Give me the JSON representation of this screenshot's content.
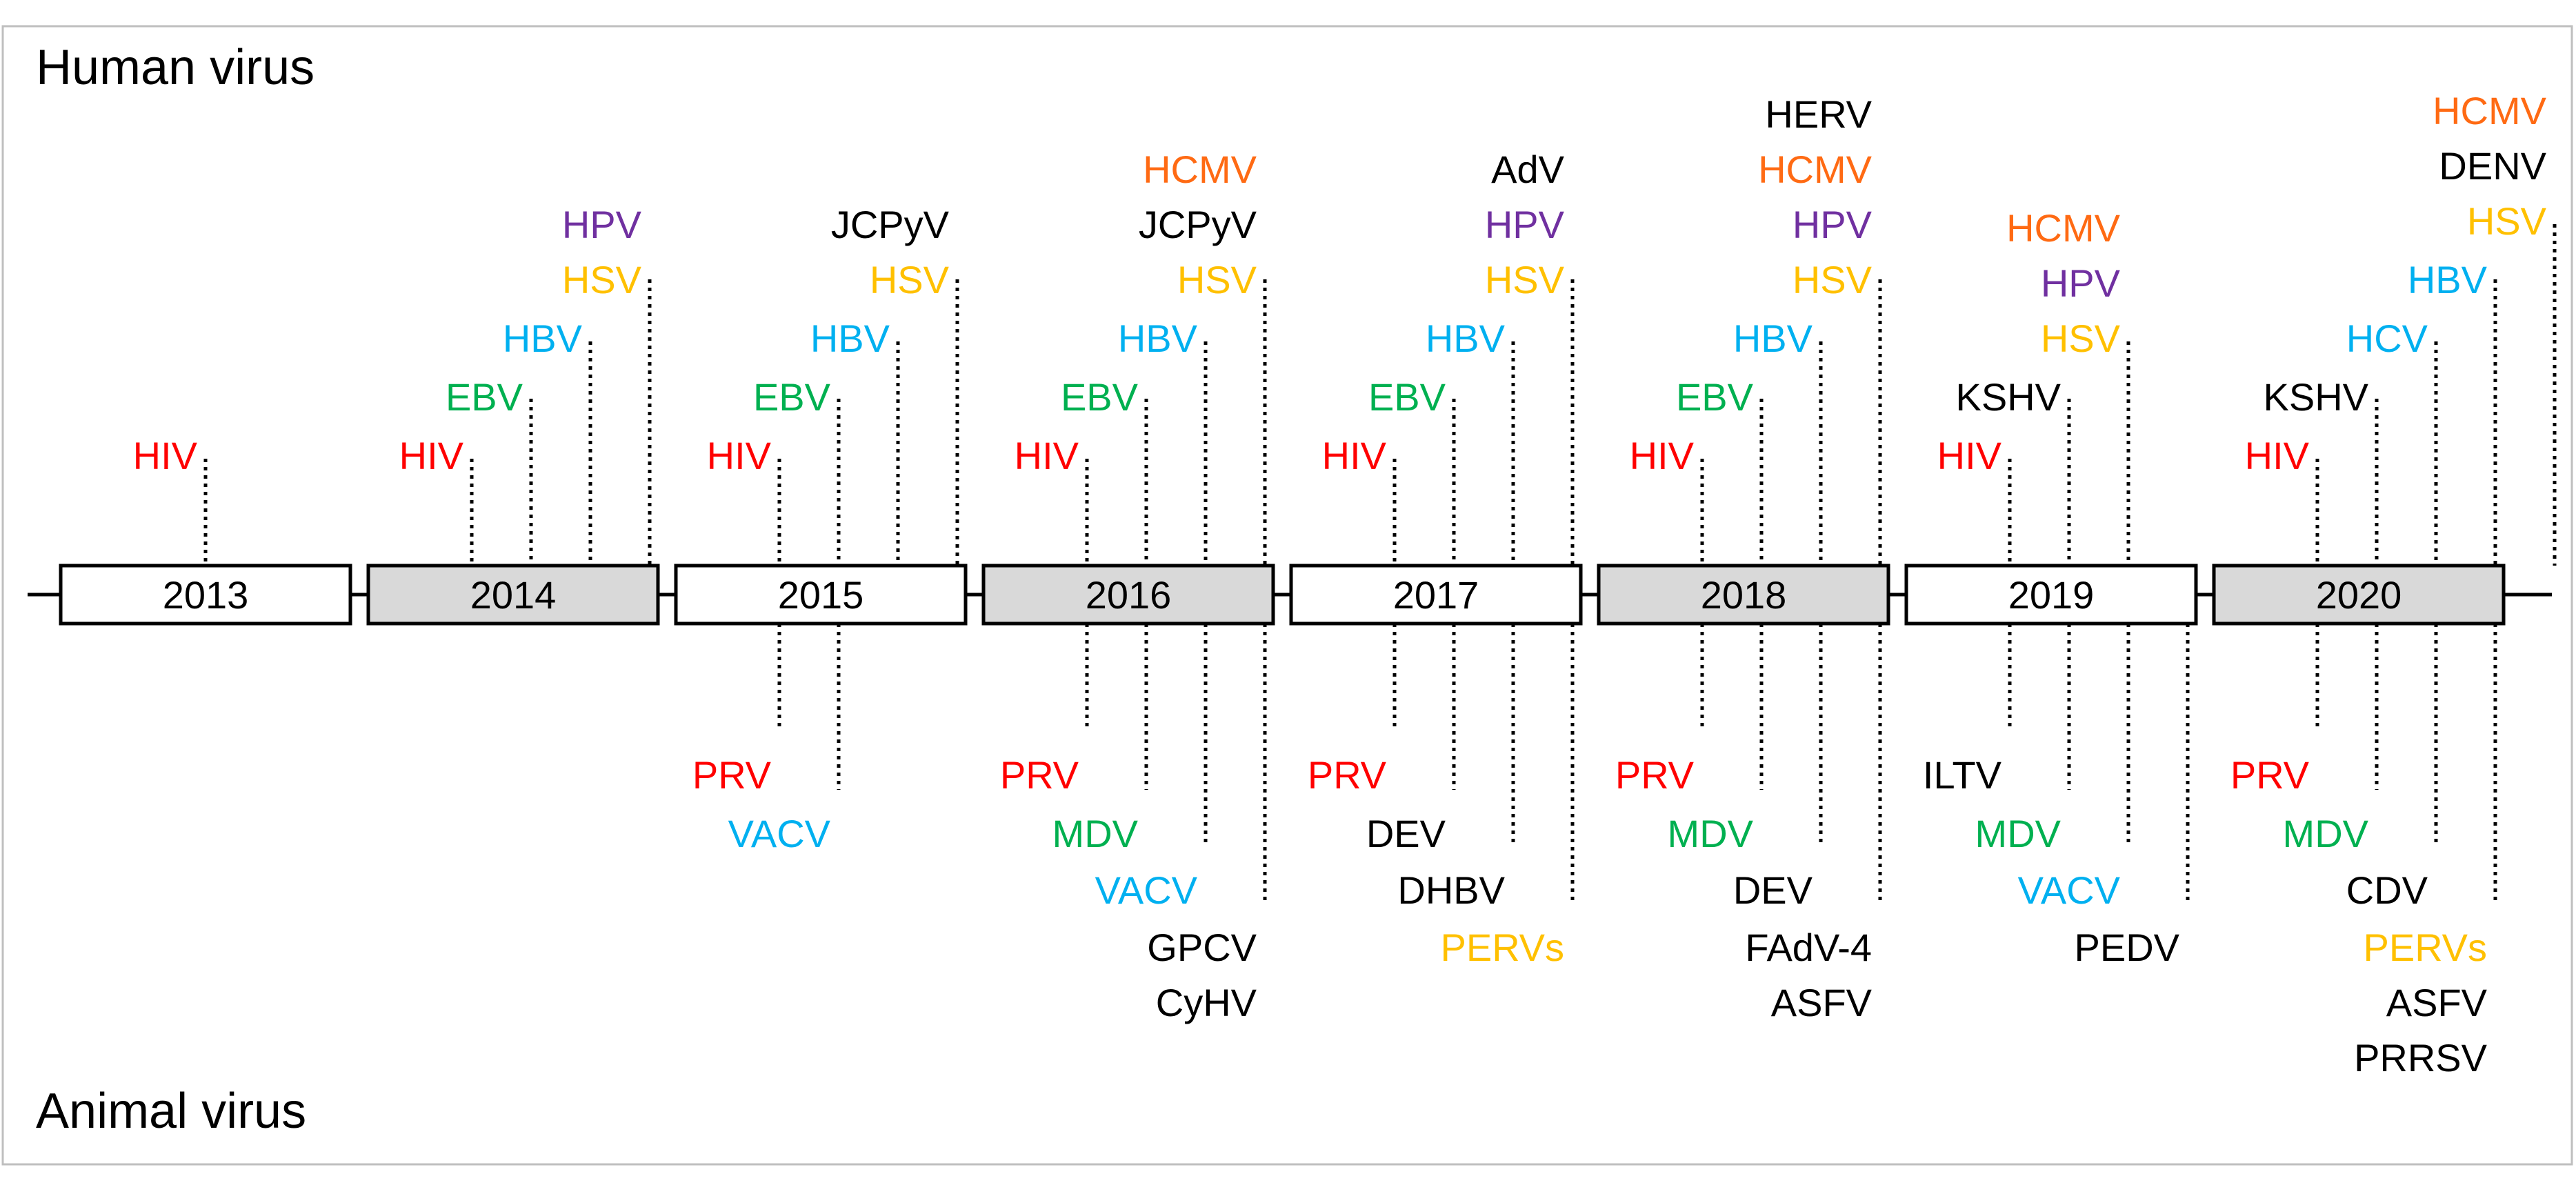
{
  "header_label": "Human virus",
  "footer_label": "Animal virus",
  "colors": {
    "red": "#ff0000",
    "green": "#00b050",
    "blue": "#00b0f0",
    "purple": "#7030a0",
    "yellow": "#ffc000",
    "orange": "#ff6a13",
    "black": "#000000",
    "box_white": "#ffffff",
    "box_gray": "#d9d9d9"
  },
  "years": [
    {
      "year": "2013",
      "shaded": false,
      "human": [
        {
          "viruses": [
            {
              "name": "HIV",
              "color": "red"
            }
          ]
        }
      ],
      "animal": []
    },
    {
      "year": "2014",
      "shaded": true,
      "human": [
        {
          "viruses": [
            {
              "name": "HIV",
              "color": "red"
            }
          ]
        },
        {
          "viruses": [
            {
              "name": "EBV",
              "color": "green"
            }
          ]
        },
        {
          "viruses": [
            {
              "name": "HBV",
              "color": "blue"
            }
          ]
        },
        {
          "viruses": [
            {
              "name": "HSV",
              "color": "yellow"
            },
            {
              "name": "HPV",
              "color": "purple"
            }
          ]
        }
      ],
      "animal": []
    },
    {
      "year": "2015",
      "shaded": false,
      "human": [
        {
          "viruses": [
            {
              "name": "HIV",
              "color": "red"
            }
          ]
        },
        {
          "viruses": [
            {
              "name": "EBV",
              "color": "green"
            }
          ]
        },
        {
          "viruses": [
            {
              "name": "HBV",
              "color": "blue"
            }
          ]
        },
        {
          "viruses": [
            {
              "name": "HSV",
              "color": "yellow"
            },
            {
              "name": "JCPyV",
              "color": "black"
            }
          ]
        }
      ],
      "animal": [
        {
          "viruses": [
            {
              "name": "PRV",
              "color": "red"
            }
          ]
        },
        {
          "viruses": [
            {
              "name": "VACV",
              "color": "blue"
            }
          ]
        }
      ]
    },
    {
      "year": "2016",
      "shaded": true,
      "human": [
        {
          "viruses": [
            {
              "name": "HIV",
              "color": "red"
            }
          ]
        },
        {
          "viruses": [
            {
              "name": "EBV",
              "color": "green"
            }
          ]
        },
        {
          "viruses": [
            {
              "name": "HBV",
              "color": "blue"
            }
          ]
        },
        {
          "viruses": [
            {
              "name": "HSV",
              "color": "yellow"
            },
            {
              "name": "JCPyV",
              "color": "black"
            },
            {
              "name": "HCMV",
              "color": "orange"
            }
          ]
        }
      ],
      "animal": [
        {
          "viruses": [
            {
              "name": "PRV",
              "color": "red"
            }
          ]
        },
        {
          "viruses": [
            {
              "name": "MDV",
              "color": "green"
            }
          ]
        },
        {
          "viruses": [
            {
              "name": "VACV",
              "color": "blue"
            }
          ]
        },
        {
          "viruses": [
            {
              "name": "GPCV",
              "color": "black"
            },
            {
              "name": "CyHV",
              "color": "black"
            }
          ]
        }
      ]
    },
    {
      "year": "2017",
      "shaded": false,
      "human": [
        {
          "viruses": [
            {
              "name": "HIV",
              "color": "red"
            }
          ]
        },
        {
          "viruses": [
            {
              "name": "EBV",
              "color": "green"
            }
          ]
        },
        {
          "viruses": [
            {
              "name": "HBV",
              "color": "blue"
            }
          ]
        },
        {
          "viruses": [
            {
              "name": "HSV",
              "color": "yellow"
            },
            {
              "name": "HPV",
              "color": "purple"
            },
            {
              "name": "AdV",
              "color": "black"
            }
          ]
        }
      ],
      "animal": [
        {
          "viruses": [
            {
              "name": "PRV",
              "color": "red"
            }
          ]
        },
        {
          "viruses": [
            {
              "name": "DEV",
              "color": "black"
            }
          ]
        },
        {
          "viruses": [
            {
              "name": "DHBV",
              "color": "black"
            }
          ]
        },
        {
          "viruses": [
            {
              "name": "PERVs",
              "color": "yellow"
            }
          ]
        }
      ]
    },
    {
      "year": "2018",
      "shaded": true,
      "human": [
        {
          "viruses": [
            {
              "name": "HIV",
              "color": "red"
            }
          ]
        },
        {
          "viruses": [
            {
              "name": "EBV",
              "color": "green"
            }
          ]
        },
        {
          "viruses": [
            {
              "name": "HBV",
              "color": "blue"
            }
          ]
        },
        {
          "viruses": [
            {
              "name": "HSV",
              "color": "yellow"
            },
            {
              "name": "HPV",
              "color": "purple"
            },
            {
              "name": "HCMV",
              "color": "orange"
            },
            {
              "name": "HERV",
              "color": "black"
            }
          ]
        }
      ],
      "animal": [
        {
          "viruses": [
            {
              "name": "PRV",
              "color": "red"
            }
          ]
        },
        {
          "viruses": [
            {
              "name": "MDV",
              "color": "green"
            }
          ]
        },
        {
          "viruses": [
            {
              "name": "DEV",
              "color": "black"
            }
          ]
        },
        {
          "viruses": [
            {
              "name": "FAdV-4",
              "color": "black"
            },
            {
              "name": "ASFV",
              "color": "black"
            }
          ]
        }
      ]
    },
    {
      "year": "2019",
      "shaded": false,
      "human": [
        {
          "viruses": [
            {
              "name": "HIV",
              "color": "red"
            }
          ]
        },
        {
          "viruses": [
            {
              "name": "KSHV",
              "color": "black"
            }
          ]
        },
        {
          "viruses": [
            {
              "name": "HSV",
              "color": "yellow"
            },
            {
              "name": "HPV",
              "color": "purple"
            },
            {
              "name": "HCMV",
              "color": "orange"
            }
          ]
        }
      ],
      "animal": [
        {
          "viruses": [
            {
              "name": "ILTV",
              "color": "black"
            }
          ]
        },
        {
          "viruses": [
            {
              "name": "MDV",
              "color": "green"
            }
          ]
        },
        {
          "viruses": [
            {
              "name": "VACV",
              "color": "blue"
            }
          ]
        },
        {
          "viruses": [
            {
              "name": "PEDV",
              "color": "black"
            }
          ]
        }
      ]
    },
    {
      "year": "2020",
      "shaded": true,
      "human": [
        {
          "viruses": [
            {
              "name": "HIV",
              "color": "red"
            }
          ]
        },
        {
          "viruses": [
            {
              "name": "KSHV",
              "color": "black"
            }
          ]
        },
        {
          "viruses": [
            {
              "name": "HCV",
              "color": "blue"
            }
          ]
        },
        {
          "viruses": [
            {
              "name": "HBV",
              "color": "blue"
            }
          ]
        },
        {
          "viruses": [
            {
              "name": "HSV",
              "color": "yellow"
            },
            {
              "name": "DENV",
              "color": "black"
            },
            {
              "name": "HCMV",
              "color": "orange"
            }
          ]
        }
      ],
      "animal": [
        {
          "viruses": [
            {
              "name": "PRV",
              "color": "red"
            }
          ]
        },
        {
          "viruses": [
            {
              "name": "MDV",
              "color": "green"
            }
          ]
        },
        {
          "viruses": [
            {
              "name": "CDV",
              "color": "black"
            }
          ]
        },
        {
          "viruses": [
            {
              "name": "PERVs",
              "color": "yellow"
            },
            {
              "name": "ASFV",
              "color": "black"
            },
            {
              "name": "PRRSV",
              "color": "black"
            }
          ]
        }
      ]
    }
  ]
}
